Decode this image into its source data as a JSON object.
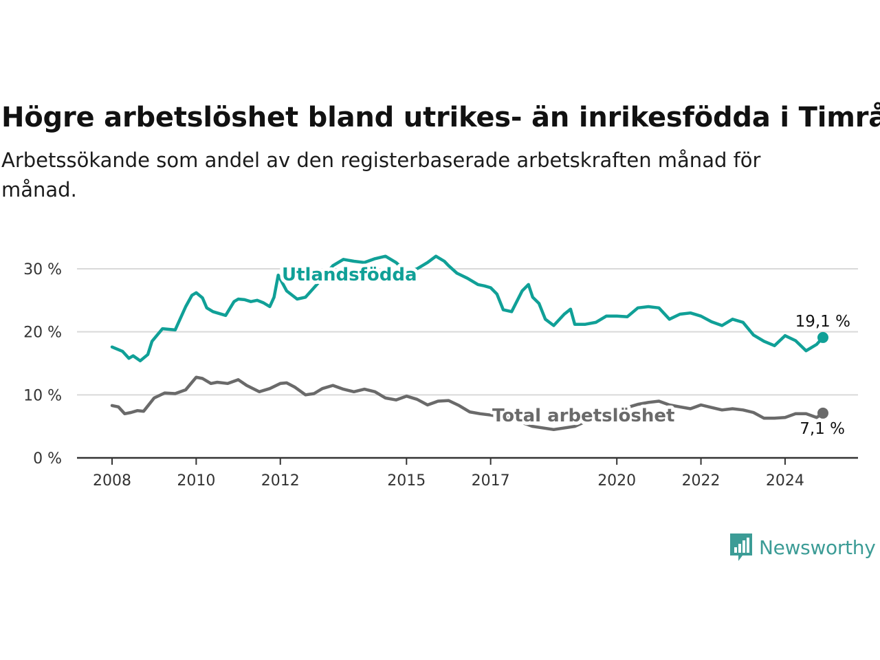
{
  "header": {
    "title": "Högre arbetslöshet bland utrikes- än inrikesfödda i Timrå",
    "subtitle": "Arbetssökande som andel av den registerbaserade arbetskraften månad för månad."
  },
  "brand": {
    "name": "Newsworthy",
    "icon": "newsworthy-logo-icon",
    "color": "#3c9c96"
  },
  "chart_data": {
    "type": "line",
    "title": "Högre arbetslöshet bland utrikes- än inrikesfödda i Timrå",
    "subtitle": "Arbetssökande som andel av den registerbaserade arbetskraften månad för månad.",
    "xlabel": "",
    "ylabel": "",
    "xlim": [
      2008,
      2025.4
    ],
    "ylim": [
      0,
      30
    ],
    "x_ticks": [
      2008,
      2010,
      2012,
      2015,
      2017,
      2020,
      2022,
      2024
    ],
    "x_tick_labels": [
      "2008",
      "2010",
      "2012",
      "2015",
      "2017",
      "2020",
      "2022",
      "2024"
    ],
    "y_ticks": [
      0,
      10,
      20,
      30
    ],
    "y_tick_labels": [
      "0 %",
      "10 %",
      "20 %",
      "30 %"
    ],
    "grid": "horizontal",
    "legend": "inline-labels",
    "series": [
      {
        "name": "Utlandsfödda",
        "color": "#10a097",
        "end_label": "19,1 %",
        "x": [
          2008.0,
          2008.25,
          2008.4,
          2008.5,
          2008.67,
          2008.85,
          2008.95,
          2009.2,
          2009.5,
          2009.75,
          2009.9,
          2010.0,
          2010.15,
          2010.25,
          2010.4,
          2010.7,
          2010.9,
          2011.0,
          2011.15,
          2011.3,
          2011.45,
          2011.6,
          2011.75,
          2011.85,
          2011.95,
          2012.15,
          2012.4,
          2012.6,
          2012.8,
          2013.0,
          2013.25,
          2013.5,
          2013.75,
          2014.0,
          2014.25,
          2014.5,
          2014.75,
          2015.0,
          2015.25,
          2015.5,
          2015.7,
          2015.9,
          2016.0,
          2016.2,
          2016.45,
          2016.7,
          2016.85,
          2017.0,
          2017.15,
          2017.3,
          2017.5,
          2017.75,
          2017.9,
          2018.0,
          2018.15,
          2018.3,
          2018.5,
          2018.75,
          2018.9,
          2019.0,
          2019.25,
          2019.5,
          2019.75,
          2020.0,
          2020.25,
          2020.5,
          2020.75,
          2021.0,
          2021.25,
          2021.5,
          2021.75,
          2022.0,
          2022.25,
          2022.5,
          2022.75,
          2023.0,
          2023.25,
          2023.5,
          2023.75,
          2024.0,
          2024.25,
          2024.5,
          2024.75,
          2024.9
        ],
        "y": [
          17.6,
          16.9,
          15.8,
          16.2,
          15.4,
          16.4,
          18.5,
          20.5,
          20.3,
          24.0,
          25.8,
          26.2,
          25.4,
          23.8,
          23.2,
          22.6,
          24.8,
          25.2,
          25.1,
          24.8,
          25.0,
          24.6,
          24.0,
          25.5,
          29.0,
          26.5,
          25.2,
          25.5,
          27.0,
          28.5,
          30.5,
          31.5,
          31.2,
          31.0,
          31.6,
          32.0,
          31.0,
          29.5,
          30.0,
          31.0,
          32.0,
          31.2,
          30.5,
          29.3,
          28.5,
          27.5,
          27.3,
          27.0,
          26.0,
          23.5,
          23.2,
          26.5,
          27.5,
          25.5,
          24.5,
          22.0,
          21.0,
          22.8,
          23.6,
          21.2,
          21.2,
          21.5,
          22.5,
          22.5,
          22.4,
          23.8,
          24.0,
          23.8,
          22.0,
          22.8,
          23.0,
          22.5,
          21.6,
          21.0,
          22.0,
          21.5,
          19.5,
          18.5,
          17.8,
          19.4,
          18.6,
          17.0,
          18.0,
          19.1
        ]
      },
      {
        "name": "Total arbetslöshet",
        "color": "#6a6a6a",
        "end_label": "7,1 %",
        "x": [
          2008.0,
          2008.15,
          2008.3,
          2008.45,
          2008.6,
          2008.75,
          2009.0,
          2009.25,
          2009.5,
          2009.75,
          2010.0,
          2010.15,
          2010.35,
          2010.5,
          2010.75,
          2011.0,
          2011.2,
          2011.5,
          2011.75,
          2012.0,
          2012.15,
          2012.35,
          2012.6,
          2012.8,
          2013.0,
          2013.25,
          2013.5,
          2013.75,
          2014.0,
          2014.25,
          2014.5,
          2014.75,
          2015.0,
          2015.25,
          2015.5,
          2015.75,
          2016.0,
          2016.25,
          2016.5,
          2016.75,
          2017.0,
          2017.5,
          2018.0,
          2018.5,
          2019.0,
          2019.5,
          2020.0,
          2020.25,
          2020.5,
          2020.75,
          2021.0,
          2021.25,
          2021.5,
          2021.75,
          2022.0,
          2022.25,
          2022.5,
          2022.75,
          2023.0,
          2023.25,
          2023.5,
          2023.75,
          2024.0,
          2024.25,
          2024.5,
          2024.75,
          2024.9
        ],
        "y": [
          8.3,
          8.1,
          7.0,
          7.2,
          7.5,
          7.4,
          9.5,
          10.3,
          10.2,
          10.8,
          12.8,
          12.6,
          11.8,
          12.0,
          11.8,
          12.4,
          11.5,
          10.5,
          11.0,
          11.8,
          11.9,
          11.2,
          10.0,
          10.2,
          11.0,
          11.5,
          10.9,
          10.5,
          10.9,
          10.5,
          9.5,
          9.2,
          9.8,
          9.3,
          8.4,
          9.0,
          9.1,
          8.3,
          7.3,
          7.0,
          6.8,
          6.2,
          5.0,
          4.5,
          5.0,
          6.5,
          7.5,
          8.0,
          8.5,
          8.8,
          9.0,
          8.4,
          8.1,
          7.8,
          8.4,
          8.0,
          7.6,
          7.8,
          7.6,
          7.2,
          6.3,
          6.3,
          6.4,
          7.0,
          7.0,
          6.4,
          7.1
        ]
      }
    ]
  }
}
